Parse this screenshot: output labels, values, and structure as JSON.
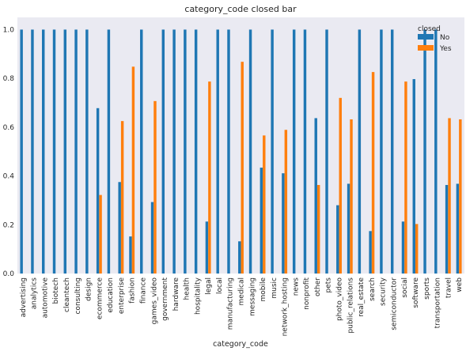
{
  "chart_data": {
    "type": "bar",
    "title": "category_code closed bar",
    "xlabel": "category_code",
    "ylabel": "",
    "ylim": [
      0,
      1.05
    ],
    "yticks": [
      0.0,
      0.2,
      0.4,
      0.6,
      0.8,
      1.0
    ],
    "ytick_labels": [
      "0.0",
      "0.2",
      "0.4",
      "0.6",
      "0.8",
      "1.0"
    ],
    "grid": false,
    "legend": {
      "title": "closed",
      "position": "top-right"
    },
    "categories": [
      "advertising",
      "analytics",
      "automotive",
      "biotech",
      "cleantech",
      "consulting",
      "design",
      "ecommerce",
      "education",
      "enterprise",
      "fashion",
      "finance",
      "games_video",
      "government",
      "hardware",
      "health",
      "hospitality",
      "legal",
      "local",
      "manufacturing",
      "medical",
      "messaging",
      "mobile",
      "music",
      "network_hosting",
      "news",
      "nonprofit",
      "other",
      "pets",
      "photo_video",
      "public_relations",
      "real_estate",
      "search",
      "security",
      "semiconductor",
      "social",
      "software",
      "sports",
      "transportation",
      "travel",
      "web"
    ],
    "series": [
      {
        "name": "No",
        "color": "#1f77b4",
        "values": [
          1.0,
          1.0,
          1.0,
          1.0,
          1.0,
          1.0,
          1.0,
          0.678,
          1.0,
          0.375,
          0.152,
          1.0,
          0.293,
          1.0,
          1.0,
          1.0,
          1.0,
          0.213,
          1.0,
          1.0,
          0.132,
          1.0,
          0.434,
          1.0,
          0.411,
          1.0,
          1.0,
          0.637,
          1.0,
          0.28,
          0.368,
          1.0,
          0.174,
          1.0,
          1.0,
          0.213,
          0.797,
          1.0,
          1.0,
          0.363,
          0.368
        ]
      },
      {
        "name": "Yes",
        "color": "#ff7f0e",
        "values": [
          0,
          0,
          0,
          0,
          0,
          0,
          0,
          0.322,
          0,
          0.625,
          0.848,
          0,
          0.707,
          0,
          0,
          0,
          0,
          0.787,
          0,
          0,
          0.868,
          0,
          0.566,
          0,
          0.589,
          0,
          0,
          0.363,
          0,
          0.72,
          0.632,
          0,
          0.826,
          0,
          0,
          0.787,
          0.203,
          0,
          0,
          0.637,
          0.632
        ]
      }
    ]
  }
}
